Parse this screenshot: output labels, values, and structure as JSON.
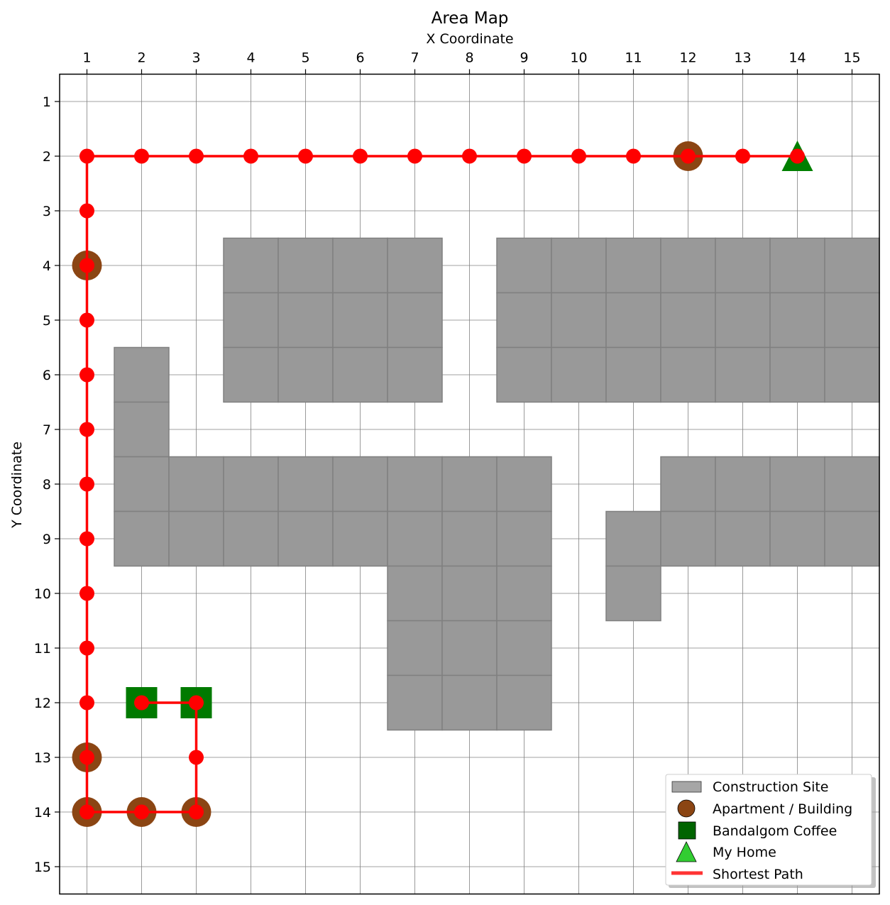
{
  "chart_data": {
    "type": "grid-map",
    "title": "Area Map",
    "xlabel": "X Coordinate",
    "ylabel": "Y Coordinate",
    "xlim": [
      0.5,
      15.5
    ],
    "ylim": [
      15.5,
      0.5
    ],
    "x_axis_position": "top",
    "y_inverted": true,
    "grid": true,
    "xticks": [
      1,
      2,
      3,
      4,
      5,
      6,
      7,
      8,
      9,
      10,
      11,
      12,
      13,
      14,
      15
    ],
    "yticks": [
      1,
      2,
      3,
      4,
      5,
      6,
      7,
      8,
      9,
      10,
      11,
      12,
      13,
      14,
      15
    ],
    "construction_cells": [
      [
        4,
        4
      ],
      [
        5,
        4
      ],
      [
        6,
        4
      ],
      [
        7,
        4
      ],
      [
        4,
        5
      ],
      [
        5,
        5
      ],
      [
        6,
        5
      ],
      [
        7,
        5
      ],
      [
        4,
        6
      ],
      [
        5,
        6
      ],
      [
        6,
        6
      ],
      [
        7,
        6
      ],
      [
        9,
        4
      ],
      [
        10,
        4
      ],
      [
        11,
        4
      ],
      [
        12,
        4
      ],
      [
        13,
        4
      ],
      [
        14,
        4
      ],
      [
        15,
        4
      ],
      [
        9,
        5
      ],
      [
        10,
        5
      ],
      [
        11,
        5
      ],
      [
        12,
        5
      ],
      [
        13,
        5
      ],
      [
        14,
        5
      ],
      [
        15,
        5
      ],
      [
        9,
        6
      ],
      [
        10,
        6
      ],
      [
        11,
        6
      ],
      [
        12,
        6
      ],
      [
        13,
        6
      ],
      [
        14,
        6
      ],
      [
        15,
        6
      ],
      [
        2,
        6
      ],
      [
        2,
        7
      ],
      [
        2,
        8
      ],
      [
        3,
        8
      ],
      [
        4,
        8
      ],
      [
        5,
        8
      ],
      [
        6,
        8
      ],
      [
        7,
        8
      ],
      [
        8,
        8
      ],
      [
        9,
        8
      ],
      [
        2,
        9
      ],
      [
        3,
        9
      ],
      [
        4,
        9
      ],
      [
        5,
        9
      ],
      [
        6,
        9
      ],
      [
        7,
        9
      ],
      [
        8,
        9
      ],
      [
        9,
        9
      ],
      [
        7,
        10
      ],
      [
        8,
        10
      ],
      [
        9,
        10
      ],
      [
        7,
        11
      ],
      [
        8,
        11
      ],
      [
        9,
        11
      ],
      [
        7,
        12
      ],
      [
        8,
        12
      ],
      [
        9,
        12
      ],
      [
        12,
        8
      ],
      [
        13,
        8
      ],
      [
        14,
        8
      ],
      [
        15,
        8
      ],
      [
        11,
        9
      ],
      [
        12,
        9
      ],
      [
        13,
        9
      ],
      [
        14,
        9
      ],
      [
        15,
        9
      ],
      [
        11,
        10
      ]
    ],
    "apartments": [
      [
        12,
        2
      ],
      [
        1,
        4
      ],
      [
        1,
        13
      ],
      [
        1,
        14
      ],
      [
        2,
        14
      ],
      [
        3,
        14
      ]
    ],
    "coffee_shops": [
      [
        2,
        12
      ],
      [
        3,
        12
      ]
    ],
    "home": [
      14,
      2
    ],
    "path": [
      [
        2,
        12
      ],
      [
        3,
        12
      ],
      [
        3,
        13
      ],
      [
        3,
        14
      ],
      [
        2,
        14
      ],
      [
        1,
        14
      ],
      [
        1,
        13
      ],
      [
        1,
        12
      ],
      [
        1,
        11
      ],
      [
        1,
        10
      ],
      [
        1,
        9
      ],
      [
        1,
        8
      ],
      [
        1,
        7
      ],
      [
        1,
        6
      ],
      [
        1,
        5
      ],
      [
        1,
        4
      ],
      [
        1,
        3
      ],
      [
        1,
        2
      ],
      [
        2,
        2
      ],
      [
        3,
        2
      ],
      [
        4,
        2
      ],
      [
        5,
        2
      ],
      [
        6,
        2
      ],
      [
        7,
        2
      ],
      [
        8,
        2
      ],
      [
        9,
        2
      ],
      [
        10,
        2
      ],
      [
        11,
        2
      ],
      [
        12,
        2
      ],
      [
        13,
        2
      ],
      [
        14,
        2
      ]
    ],
    "legend": {
      "placement": "bottom-right",
      "entries": [
        {
          "label": "Construction Site"
        },
        {
          "label": "Apartment / Building"
        },
        {
          "label": "Bandalgom Coffee"
        },
        {
          "label": "My Home"
        },
        {
          "label": "Shortest Path"
        }
      ]
    },
    "colors": {
      "construction": "#999999",
      "construction_edge": "#808080",
      "construction_legend": "#a6a6a6",
      "apartment": "#8b4513",
      "coffee": "#007a00",
      "coffee_legend": "#006400",
      "home": "#007f00",
      "home_legend": "#32cd32",
      "path": "#ff0000",
      "path_legend": "#ff3333",
      "grid": "#808080"
    }
  }
}
